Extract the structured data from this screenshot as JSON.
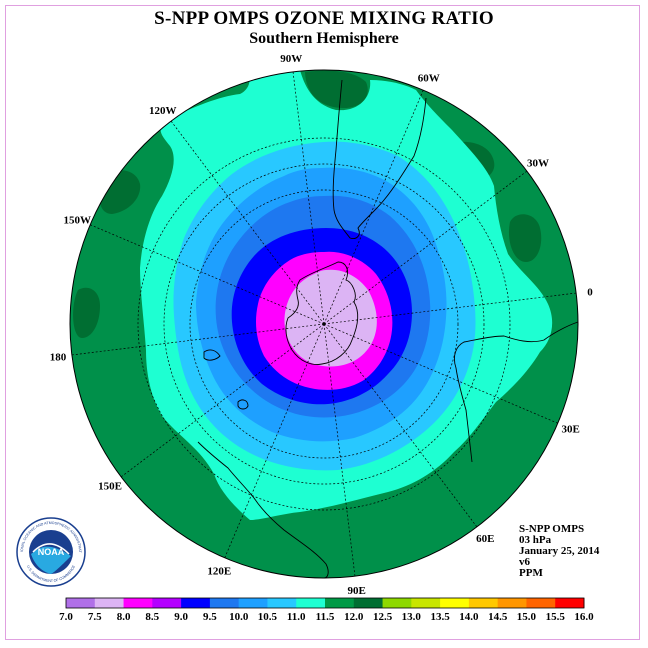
{
  "title": "S-NPP OMPS OZONE MIXING RATIO",
  "subtitle": "Southern Hemisphere",
  "longitude_labels": [
    {
      "text": "90W",
      "angle": 90
    },
    {
      "text": "60W",
      "angle": 60
    },
    {
      "text": "30W",
      "angle": 30
    },
    {
      "text": "0",
      "angle": 0
    },
    {
      "text": "30E",
      "angle": -30
    },
    {
      "text": "60E",
      "angle": -60
    },
    {
      "text": "90E",
      "angle": -90
    },
    {
      "text": "120E",
      "angle": -120
    },
    {
      "text": "150E",
      "angle": -150
    },
    {
      "text": "180",
      "angle": 180
    },
    {
      "text": "150W",
      "angle": 150
    },
    {
      "text": "120W",
      "angle": 120
    }
  ],
  "info": {
    "instrument": "S-NPP OMPS",
    "level": "03 hPa",
    "date": "January 25, 2014",
    "version": "v6",
    "units": "PPM"
  },
  "logo": {
    "text": "NOAA",
    "ring_text": "NATIONAL OCEANIC AND ATMOSPHERIC ADMINISTRATION",
    "ring_text_bottom": "U.S. DEPARTMENT OF COMMERCE"
  },
  "colorbar": {
    "labels": [
      "7.0",
      "7.5",
      "8.0",
      "8.5",
      "9.0",
      "9.5",
      "10.0",
      "10.5",
      "11.0",
      "11.5",
      "12.0",
      "12.5",
      "13.0",
      "13.5",
      "14.0",
      "14.5",
      "15.0",
      "15.5",
      "16.0"
    ],
    "colors": [
      "#b070e8",
      "#dcb4f4",
      "#ff00ff",
      "#b400ff",
      "#0000ff",
      "#1e78f0",
      "#1ea0ff",
      "#28c8ff",
      "#1effd2",
      "#009a46",
      "#006e32",
      "#8ed800",
      "#c8e600",
      "#ffff00",
      "#ffc800",
      "#ff9600",
      "#ff6400",
      "#ff0000",
      "#a0522d"
    ]
  },
  "zones": [
    {
      "value": "11.5",
      "color": "#00904a"
    },
    {
      "value": "11.0",
      "color": "#1effd2"
    },
    {
      "value": "10.5",
      "color": "#28c8ff"
    },
    {
      "value": "10.0",
      "color": "#1ea0ff"
    },
    {
      "value": "9.5",
      "color": "#1e78f0"
    },
    {
      "value": "9.0",
      "color": "#0000ff"
    },
    {
      "value": "8.5",
      "color": "#ff00ff"
    },
    {
      "value": "8.0",
      "color": "#dcb4f4"
    }
  ]
}
